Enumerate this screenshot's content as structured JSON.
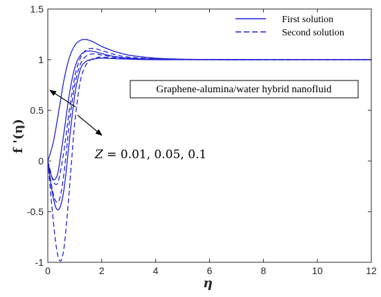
{
  "chart_data": {
    "type": "line",
    "xlabel": "η",
    "ylabel": "f '(η)",
    "xlim": [
      0,
      12
    ],
    "ylim": [
      -1,
      1.5
    ],
    "xticks": [
      0,
      2,
      4,
      6,
      8,
      10,
      12
    ],
    "yticks": [
      -1,
      -0.5,
      0,
      0.5,
      1,
      1.5
    ],
    "xtick_labels": [
      "0",
      "2",
      "4",
      "6",
      "8",
      "10",
      "12"
    ],
    "ytick_labels": [
      "-1",
      "-0.5",
      "0",
      "0.5",
      "1",
      "1.5"
    ],
    "grid": false,
    "legend": {
      "placement": "top-right",
      "entries": [
        {
          "label": "First solution",
          "style": "solid"
        },
        {
          "label": "Second solution",
          "style": "dashed"
        }
      ]
    },
    "annotations": {
      "box_label": "Graphene-alumina/water hybrid nanofluid",
      "param_prefix": "Z = ",
      "param_values": "0.01, 0.05, 0.1"
    },
    "line_color": "#1f1fd6",
    "series": [
      {
        "solution": "first",
        "Z": 0.01,
        "style": "solid",
        "x": [
          0,
          0.2,
          0.4,
          0.6,
          0.8,
          1.0,
          1.2,
          1.4,
          1.6,
          1.8,
          2.0,
          2.5,
          3.0,
          4.0,
          5.0,
          6.0,
          8.0,
          10.0,
          12.0
        ],
        "y": [
          0,
          0.18,
          0.48,
          0.8,
          1.02,
          1.14,
          1.19,
          1.2,
          1.185,
          1.16,
          1.13,
          1.08,
          1.045,
          1.015,
          1.005,
          1.002,
          1.0,
          1.0,
          1.0
        ]
      },
      {
        "solution": "first",
        "Z": 0.05,
        "style": "solid",
        "x": [
          0,
          0.1,
          0.2,
          0.3,
          0.4,
          0.6,
          0.8,
          1.0,
          1.2,
          1.4,
          1.6,
          1.8,
          2.0,
          2.5,
          3.0,
          4.0,
          6.0,
          8.0,
          12.0
        ],
        "y": [
          0,
          -0.12,
          -0.18,
          -0.17,
          -0.08,
          0.28,
          0.66,
          0.92,
          1.04,
          1.08,
          1.085,
          1.075,
          1.06,
          1.03,
          1.015,
          1.005,
          1.0,
          1.0,
          1.0
        ]
      },
      {
        "solution": "first",
        "Z": 0.1,
        "style": "solid",
        "x": [
          0,
          0.1,
          0.2,
          0.3,
          0.4,
          0.5,
          0.6,
          0.7,
          0.8,
          1.0,
          1.2,
          1.4,
          1.6,
          1.8,
          2.0,
          2.5,
          3.0,
          4.0,
          6.0,
          12.0
        ],
        "y": [
          0,
          -0.2,
          -0.36,
          -0.46,
          -0.48,
          -0.42,
          -0.28,
          -0.06,
          0.2,
          0.65,
          0.9,
          0.98,
          1.0,
          1.01,
          1.015,
          1.01,
          1.005,
          1.0,
          1.0,
          1.0
        ]
      },
      {
        "solution": "second",
        "Z": 0.01,
        "style": "dashed",
        "x": [
          0,
          0.1,
          0.2,
          0.3,
          0.4,
          0.6,
          0.8,
          1.0,
          1.2,
          1.4,
          1.6,
          1.8,
          2.0,
          2.5,
          3.0,
          4.0,
          5.0,
          6.0,
          8.0,
          12.0
        ],
        "y": [
          0,
          -0.1,
          -0.2,
          -0.23,
          -0.19,
          0.1,
          0.5,
          0.83,
          1.01,
          1.09,
          1.11,
          1.105,
          1.09,
          1.05,
          1.025,
          1.008,
          1.003,
          1.001,
          1.0,
          1.0
        ]
      },
      {
        "solution": "second",
        "Z": 0.05,
        "style": "dashed",
        "x": [
          0,
          0.1,
          0.2,
          0.3,
          0.4,
          0.5,
          0.6,
          0.7,
          0.8,
          1.0,
          1.2,
          1.4,
          1.6,
          1.8,
          2.0,
          2.5,
          3.0,
          4.0,
          6.0,
          12.0
        ],
        "y": [
          0,
          -0.18,
          -0.32,
          -0.4,
          -0.4,
          -0.3,
          -0.12,
          0.12,
          0.38,
          0.75,
          0.95,
          1.03,
          1.055,
          1.055,
          1.045,
          1.025,
          1.012,
          1.004,
          1.0,
          1.0
        ]
      },
      {
        "solution": "second",
        "Z": 0.1,
        "style": "dashed",
        "x": [
          0,
          0.1,
          0.2,
          0.3,
          0.4,
          0.5,
          0.6,
          0.7,
          0.8,
          0.9,
          1.0,
          1.2,
          1.4,
          1.6,
          1.8,
          2.0,
          2.5,
          3.0,
          4.0,
          6.0,
          12.0
        ],
        "y": [
          0,
          -0.3,
          -0.58,
          -0.82,
          -0.96,
          -0.98,
          -0.86,
          -0.6,
          -0.28,
          0.06,
          0.38,
          0.78,
          0.94,
          1.0,
          1.02,
          1.025,
          1.015,
          1.008,
          1.002,
          1.0,
          1.0
        ]
      }
    ]
  }
}
